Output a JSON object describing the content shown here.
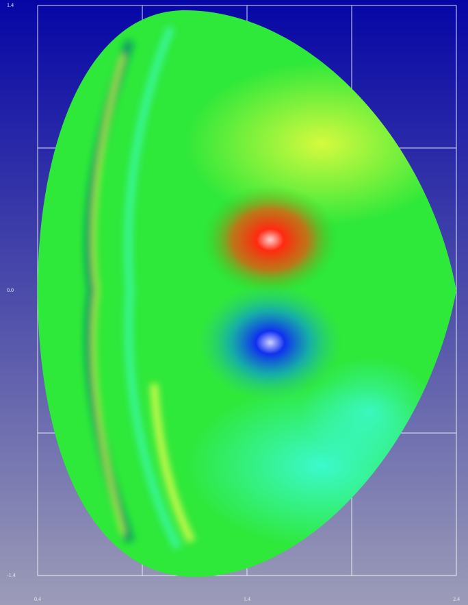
{
  "chart_data": {
    "type": "field",
    "xlim": [
      0.4,
      2.4
    ],
    "ylim": [
      -1.4,
      1.4
    ],
    "xticks": [
      0.4,
      1.4,
      2.4
    ],
    "yticks": [
      -1.4,
      {
        "value": 0,
        "label": "0.0"
      },
      1.4
    ],
    "xgrid": [
      0.4,
      0.9,
      1.4,
      1.9,
      2.4
    ],
    "ygrid": [
      -1.4,
      -0.7,
      0,
      0.7,
      1.4
    ],
    "grid": true
  }
}
